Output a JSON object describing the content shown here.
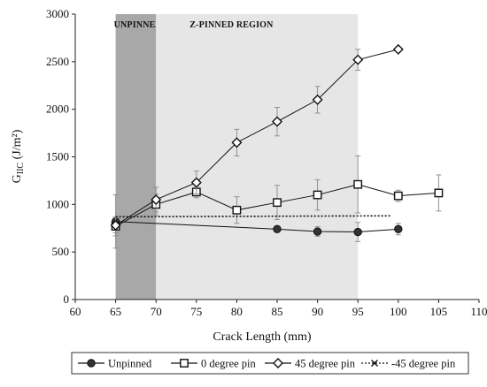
{
  "chart_data": {
    "type": "line",
    "title": "",
    "xlabel": "Crack Length (mm)",
    "ylabel": "G IIC (J/m²)",
    "ylabel_main": "G",
    "ylabel_sub": "IIC",
    "ylabel_unit": " (J/m²)",
    "xlim": [
      60,
      110
    ],
    "ylim": [
      0,
      3000
    ],
    "xticks": [
      60,
      65,
      70,
      75,
      80,
      85,
      90,
      95,
      100,
      105,
      110
    ],
    "yticks": [
      0,
      500,
      1000,
      1500,
      2000,
      2500,
      3000
    ],
    "grid": false,
    "legend_placement": "bottom",
    "regions": [
      {
        "label": "UNPINNED",
        "x_range": [
          65,
          70
        ],
        "color": "#a8a8a8"
      },
      {
        "label": "Z-PINNED REGION",
        "x_range": [
          70,
          95
        ],
        "color": "#e6e6e6"
      }
    ],
    "series": [
      {
        "name": "Unpinned",
        "marker": "circle",
        "marker_fill": "#333333",
        "line_style": "solid",
        "connect_points": [
          [
            65,
            820
          ],
          [
            85,
            740
          ],
          [
            90,
            715
          ],
          [
            95,
            710
          ],
          [
            100,
            740
          ]
        ],
        "points": [
          {
            "x": 65,
            "y": 820,
            "err": 280
          },
          {
            "x": 85,
            "y": 740,
            "err": 0
          },
          {
            "x": 90,
            "y": 715,
            "err": 50
          },
          {
            "x": 95,
            "y": 710,
            "err": 100
          },
          {
            "x": 100,
            "y": 740,
            "err": 60
          }
        ]
      },
      {
        "name": "0 degree pin",
        "marker": "square",
        "marker_fill": "#ffffff",
        "line_style": "solid",
        "points": [
          {
            "x": 65,
            "y": 770,
            "err": 100
          },
          {
            "x": 70,
            "y": 1000,
            "err": 110
          },
          {
            "x": 75,
            "y": 1130,
            "err": 60
          },
          {
            "x": 80,
            "y": 940,
            "err": 140
          },
          {
            "x": 85,
            "y": 1020,
            "err": 180
          },
          {
            "x": 90,
            "y": 1100,
            "err": 160
          },
          {
            "x": 95,
            "y": 1210,
            "err": 300
          },
          {
            "x": 100,
            "y": 1090,
            "err": 60
          },
          {
            "x": 105,
            "y": 1120,
            "err": 190
          }
        ]
      },
      {
        "name": "45 degree pin",
        "marker": "diamond",
        "marker_fill": "#ffffff",
        "line_style": "solid",
        "points": [
          {
            "x": 65,
            "y": 780,
            "err": 80
          },
          {
            "x": 70,
            "y": 1050,
            "err": 130
          },
          {
            "x": 75,
            "y": 1230,
            "err": 120
          },
          {
            "x": 80,
            "y": 1650,
            "err": 140
          },
          {
            "x": 85,
            "y": 1870,
            "err": 150
          },
          {
            "x": 90,
            "y": 2100,
            "err": 140
          },
          {
            "x": 95,
            "y": 2520,
            "err": 110
          },
          {
            "x": 100,
            "y": 2630,
            "err": 0
          }
        ]
      },
      {
        "name": "-45 degree pin",
        "marker": "x",
        "marker_fill": "none",
        "line_style": "dotted",
        "line_range": [
          65,
          99
        ],
        "points": [
          {
            "x": 65,
            "y": 870,
            "err": 0
          },
          {
            "x": 99,
            "y": 880,
            "err": 0
          }
        ]
      }
    ]
  }
}
